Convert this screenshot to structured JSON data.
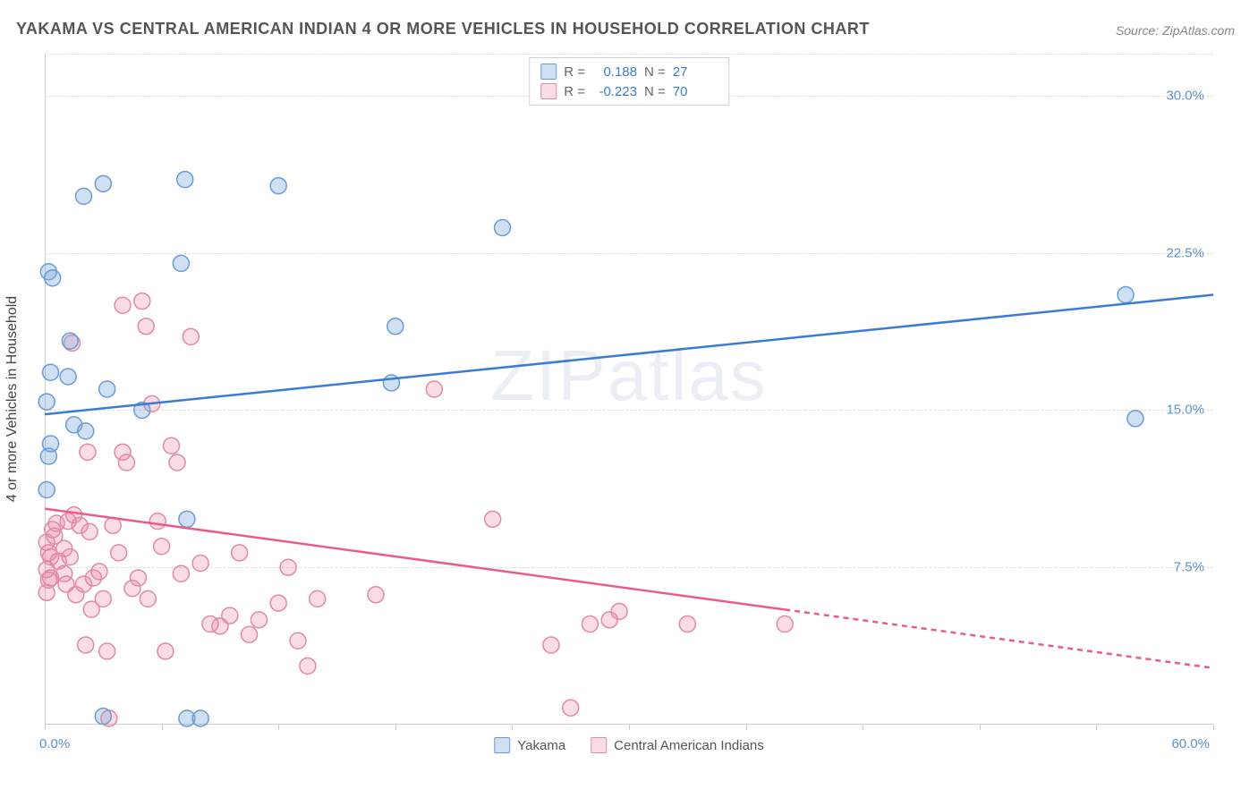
{
  "title": "YAKAMA VS CENTRAL AMERICAN INDIAN 4 OR MORE VEHICLES IN HOUSEHOLD CORRELATION CHART",
  "source": "Source: ZipAtlas.com",
  "watermark": "ZIPatlas",
  "ylabel": "4 or more Vehicles in Household",
  "chart": {
    "type": "scatter",
    "xlim": [
      0,
      60
    ],
    "ylim": [
      0,
      32
    ],
    "yticks": [
      7.5,
      15.0,
      22.5,
      30.0
    ],
    "ytick_labels": [
      "7.5%",
      "15.0%",
      "22.5%",
      "30.0%"
    ],
    "xtick_labels": {
      "0": "0.0%",
      "60": "60.0%"
    },
    "xtick_positions": [
      0,
      6,
      12,
      18,
      24,
      30,
      36,
      42,
      48,
      54,
      60
    ],
    "grid_color": "#dddddd",
    "axis_color": "#cccccc",
    "background": "#ffffff",
    "marker_radius": 9,
    "marker_stroke_width": 1.5,
    "line_width": 2.5,
    "colors": {
      "series1_fill": "rgba(120,165,220,0.35)",
      "series1_stroke": "#6a9bd8",
      "series1_line": "#3a7bd5",
      "series2_fill": "rgba(235,140,165,0.30)",
      "series2_stroke": "#e08aa5",
      "series2_line": "#e75d8a",
      "tick_text": "#5b8fd6"
    },
    "series": [
      {
        "name": "Yakama",
        "r": "0.188",
        "n": "27",
        "trend": {
          "x1": 0,
          "y1": 14.8,
          "x2": 60,
          "y2": 20.5,
          "dashed_from": null
        },
        "points": [
          [
            0.2,
            21.6
          ],
          [
            0.4,
            21.3
          ],
          [
            0.3,
            16.8
          ],
          [
            0.1,
            15.4
          ],
          [
            0.3,
            13.4
          ],
          [
            0.2,
            12.8
          ],
          [
            0.1,
            11.2
          ],
          [
            1.2,
            16.6
          ],
          [
            1.3,
            18.3
          ],
          [
            1.5,
            14.3
          ],
          [
            2.0,
            25.2
          ],
          [
            2.1,
            14.0
          ],
          [
            3.0,
            25.8
          ],
          [
            3.2,
            16.0
          ],
          [
            5.0,
            15.0
          ],
          [
            7.2,
            26.0
          ],
          [
            7.0,
            22.0
          ],
          [
            7.3,
            9.8
          ],
          [
            7.3,
            0.3
          ],
          [
            8.0,
            0.3
          ],
          [
            12.0,
            25.7
          ],
          [
            18.0,
            19.0
          ],
          [
            17.8,
            16.3
          ],
          [
            23.5,
            23.7
          ],
          [
            3.0,
            0.4
          ],
          [
            55.5,
            20.5
          ],
          [
            56.0,
            14.6
          ]
        ]
      },
      {
        "name": "Central American Indians",
        "r": "-0.223",
        "n": "70",
        "trend": {
          "x1": 0,
          "y1": 10.3,
          "x2": 60,
          "y2": 2.7,
          "dashed_from": 38
        },
        "points": [
          [
            0.1,
            8.7
          ],
          [
            0.2,
            8.2
          ],
          [
            0.3,
            8.0
          ],
          [
            0.1,
            7.4
          ],
          [
            0.3,
            7.0
          ],
          [
            0.5,
            9.0
          ],
          [
            0.6,
            9.6
          ],
          [
            0.2,
            6.9
          ],
          [
            0.1,
            6.3
          ],
          [
            0.4,
            9.3
          ],
          [
            1.0,
            7.2
          ],
          [
            1.1,
            6.7
          ],
          [
            1.2,
            9.7
          ],
          [
            1.3,
            8.0
          ],
          [
            1.5,
            10.0
          ],
          [
            1.8,
            9.5
          ],
          [
            2.0,
            6.7
          ],
          [
            2.1,
            3.8
          ],
          [
            1.4,
            18.2
          ],
          [
            2.2,
            13.0
          ],
          [
            2.3,
            9.2
          ],
          [
            2.5,
            7.0
          ],
          [
            3.0,
            6.0
          ],
          [
            3.2,
            3.5
          ],
          [
            3.3,
            0.3
          ],
          [
            3.5,
            9.5
          ],
          [
            3.8,
            8.2
          ],
          [
            4.0,
            13.0
          ],
          [
            4.2,
            12.5
          ],
          [
            4.5,
            6.5
          ],
          [
            5.0,
            20.2
          ],
          [
            5.2,
            19.0
          ],
          [
            5.5,
            15.3
          ],
          [
            5.8,
            9.7
          ],
          [
            6.0,
            8.5
          ],
          [
            6.2,
            3.5
          ],
          [
            6.5,
            13.3
          ],
          [
            6.8,
            12.5
          ],
          [
            7.0,
            7.2
          ],
          [
            7.5,
            18.5
          ],
          [
            8.0,
            7.7
          ],
          [
            8.5,
            4.8
          ],
          [
            9.0,
            4.7
          ],
          [
            10.0,
            8.2
          ],
          [
            10.5,
            4.3
          ],
          [
            11.0,
            5.0
          ],
          [
            12.5,
            7.5
          ],
          [
            13.0,
            4.0
          ],
          [
            13.5,
            2.8
          ],
          [
            14.0,
            6.0
          ],
          [
            17.0,
            6.2
          ],
          [
            20.0,
            16.0
          ],
          [
            23.0,
            9.8
          ],
          [
            26.0,
            3.8
          ],
          [
            27.0,
            0.8
          ],
          [
            28.0,
            4.8
          ],
          [
            29.0,
            5.0
          ],
          [
            29.5,
            5.4
          ],
          [
            33.0,
            4.8
          ],
          [
            38.0,
            4.8
          ],
          [
            4.0,
            20.0
          ],
          [
            1.0,
            8.4
          ],
          [
            0.7,
            7.8
          ],
          [
            2.8,
            7.3
          ],
          [
            4.8,
            7.0
          ],
          [
            1.6,
            6.2
          ],
          [
            2.4,
            5.5
          ],
          [
            5.3,
            6.0
          ],
          [
            9.5,
            5.2
          ],
          [
            12.0,
            5.8
          ]
        ]
      }
    ]
  },
  "legend_top": {
    "r_label": "R  =",
    "n_label": "N  ="
  },
  "legend_bottom": {
    "s1": "Yakama",
    "s2": "Central American Indians"
  }
}
